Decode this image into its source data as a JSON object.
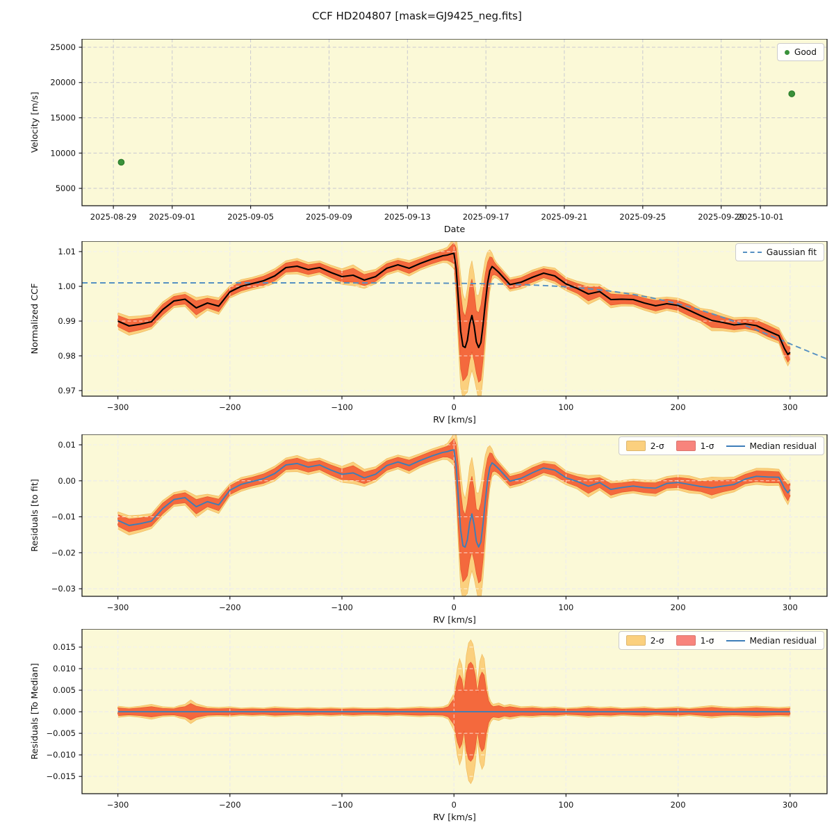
{
  "title": "CCF HD204807 [mask=GJ9425_neg.fits]",
  "figure": {
    "bg": "#ffffff",
    "plot_bg": "#fbf9d7",
    "grid_color": "#c8c8d0",
    "grid_overlay": "rgba(255,255,255,0.75)",
    "spine_color": "#1a1a1a",
    "sigma2_color": "#fbd07e",
    "sigma1_color": "#f4693d",
    "sigma2_edge": "#f0bd60",
    "sigma1_edge": "#e4562c",
    "legend_sigma2_color": "#fbd07e",
    "legend_sigma1_color": "#f8847c",
    "ccf_line_color": "#000000",
    "fit_line_color": "#5590c2",
    "median_line_color": "#3d7eb8",
    "point_color": "#3a923a",
    "point_edge_color": "#2c7e2c"
  },
  "chart_data": {
    "velocity": {
      "type": "scatter",
      "xlabel": "Date",
      "ylabel": "Velocity [m/s]",
      "ylim": [
        2540,
        26180
      ],
      "yticks": [
        {
          "v": 5000,
          "label": "5000"
        },
        {
          "v": 10000,
          "label": "10000"
        },
        {
          "v": 15000,
          "label": "15000"
        },
        {
          "v": 20000,
          "label": "20000"
        },
        {
          "v": 25000,
          "label": "25000"
        }
      ],
      "xlim_days": [
        -1.6,
        36.4
      ],
      "xticks": [
        {
          "day": 0,
          "label": "2025-08-29"
        },
        {
          "day": 3,
          "label": "2025-09-01"
        },
        {
          "day": 7,
          "label": "2025-09-05"
        },
        {
          "day": 11,
          "label": "2025-09-09"
        },
        {
          "day": 15,
          "label": "2025-09-13"
        },
        {
          "day": 19,
          "label": "2025-09-17"
        },
        {
          "day": 23,
          "label": "2025-09-21"
        },
        {
          "day": 27,
          "label": "2025-09-25"
        },
        {
          "day": 31,
          "label": "2025-09-29"
        },
        {
          "day": 33,
          "label": "2025-10-01"
        }
      ],
      "points": [
        {
          "date": "2025-08-29",
          "day": 0.4,
          "velocity": 8700
        },
        {
          "date": "2025-10-02",
          "day": 34.6,
          "velocity": 18400
        }
      ],
      "legend": [
        {
          "label": "Good",
          "marker": "dot"
        }
      ]
    },
    "ccf": {
      "type": "line",
      "xlabel": "RV [km/s]",
      "ylabel": "Normalized CCF",
      "xlim": [
        -332,
        333
      ],
      "xticks": [
        {
          "v": -300,
          "label": "−300"
        },
        {
          "v": -200,
          "label": "−200"
        },
        {
          "v": -100,
          "label": "−100"
        },
        {
          "v": 0,
          "label": "0"
        },
        {
          "v": 100,
          "label": "100"
        },
        {
          "v": 200,
          "label": "200"
        },
        {
          "v": 300,
          "label": "300"
        }
      ],
      "ylim": [
        0.9684,
        1.013
      ],
      "yticks": [
        {
          "v": 0.97,
          "label": "0.97"
        },
        {
          "v": 0.98,
          "label": "0.98"
        },
        {
          "v": 0.99,
          "label": "0.99"
        },
        {
          "v": 1.0,
          "label": "1.00"
        },
        {
          "v": 1.01,
          "label": "1.01"
        }
      ],
      "x": [
        -300,
        -290,
        -280,
        -270,
        -260,
        -250,
        -240,
        -230,
        -220,
        -210,
        -200,
        -190,
        -180,
        -170,
        -160,
        -150,
        -140,
        -130,
        -120,
        -110,
        -100,
        -90,
        -80,
        -70,
        -60,
        -50,
        -40,
        -30,
        -20,
        -10,
        -6,
        -3,
        0,
        2,
        4,
        6,
        8,
        10,
        12,
        14,
        16,
        18,
        20,
        22,
        24,
        26,
        28,
        30,
        32,
        34,
        36,
        38,
        40,
        50,
        60,
        70,
        80,
        90,
        100,
        110,
        120,
        130,
        140,
        150,
        160,
        170,
        180,
        190,
        200,
        210,
        220,
        230,
        240,
        250,
        260,
        270,
        280,
        290,
        295,
        298,
        300
      ],
      "median": [
        0.99,
        0.9886,
        0.9891,
        0.9898,
        0.9933,
        0.9958,
        0.9963,
        0.9938,
        0.9952,
        0.9943,
        0.9984,
        1.0,
        1.0008,
        1.0016,
        1.003,
        1.0054,
        1.0058,
        1.0048,
        1.0054,
        1.004,
        1.0028,
        1.0032,
        1.0018,
        1.0028,
        1.0052,
        1.0062,
        1.0052,
        1.0066,
        1.0078,
        1.0088,
        1.009,
        1.0093,
        1.0095,
        1.005,
        0.996,
        0.987,
        0.9828,
        0.9824,
        0.9845,
        0.9892,
        0.9916,
        0.9886,
        0.984,
        0.9824,
        0.9838,
        0.989,
        0.9952,
        1.001,
        1.0045,
        1.0057,
        1.0052,
        1.0046,
        1.004,
        1.0005,
        1.0012,
        1.0026,
        1.0038,
        1.003,
        1.0007,
        0.9994,
        0.9978,
        0.9985,
        0.9962,
        0.9963,
        0.9962,
        0.9952,
        0.9944,
        0.995,
        0.9945,
        0.9931,
        0.9916,
        0.9902,
        0.9896,
        0.9889,
        0.9892,
        0.9887,
        0.9872,
        0.9858,
        0.9821,
        0.9804,
        0.981
      ],
      "sigma1": [
        0.0016,
        0.0018,
        0.0016,
        0.0014,
        0.0015,
        0.0013,
        0.0014,
        0.002,
        0.0014,
        0.0016,
        0.0012,
        0.0013,
        0.0012,
        0.0013,
        0.0014,
        0.0013,
        0.0015,
        0.0014,
        0.0013,
        0.0014,
        0.0015,
        0.002,
        0.0016,
        0.0014,
        0.0013,
        0.0013,
        0.0015,
        0.0013,
        0.0013,
        0.0013,
        0.0015,
        0.0022,
        0.003,
        0.006,
        0.009,
        0.0108,
        0.01,
        0.009,
        0.01,
        0.0105,
        0.0105,
        0.01,
        0.009,
        0.01,
        0.0108,
        0.01,
        0.0085,
        0.006,
        0.004,
        0.0026,
        0.0018,
        0.0015,
        0.0014,
        0.0013,
        0.0013,
        0.0014,
        0.0013,
        0.0015,
        0.0013,
        0.0014,
        0.002,
        0.0014,
        0.0016,
        0.0013,
        0.0013,
        0.0014,
        0.0015,
        0.0013,
        0.0014,
        0.0016,
        0.0014,
        0.002,
        0.0016,
        0.0014,
        0.0013,
        0.0015,
        0.0016,
        0.0015,
        0.002,
        0.0022,
        0.0018
      ],
      "sigma2_scale": 1.5,
      "gaussian_fit": {
        "continuum": 1.001,
        "depth": 0.0289,
        "center": 430,
        "sigma": 130
      },
      "legend": [
        {
          "label": "Gaussian fit",
          "marker": "dashed-line"
        }
      ]
    },
    "residuals_to_fit": {
      "type": "line",
      "xlabel": "RV [km/s]",
      "ylabel": "Residuals [to fit]",
      "ylim": [
        -0.0321,
        0.0129
      ],
      "yticks": [
        {
          "v": 0.01,
          "label": "0.01"
        },
        {
          "v": 0.0,
          "label": "0.00"
        },
        {
          "v": -0.01,
          "label": "−0.01"
        },
        {
          "v": -0.02,
          "label": "−0.02"
        },
        {
          "v": -0.03,
          "label": "−0.03"
        }
      ],
      "derived": "ccf.median minus gaussian_fit",
      "sigma_from": "ccf",
      "legend": [
        {
          "label": "2-σ",
          "marker": "patch2"
        },
        {
          "label": "1-σ",
          "marker": "patch1"
        },
        {
          "label": "Median residual",
          "marker": "line"
        }
      ]
    },
    "residuals_to_median": {
      "type": "line",
      "xlabel": "RV [km/s]",
      "ylabel": "Residuals [To Median]",
      "ylim": [
        -0.019,
        0.0192
      ],
      "yticks": [
        {
          "v": 0.015,
          "label": "0.015"
        },
        {
          "v": 0.01,
          "label": "0.010"
        },
        {
          "v": 0.005,
          "label": "0.005"
        },
        {
          "v": 0.0,
          "label": "0.000"
        },
        {
          "v": -0.005,
          "label": "−0.005"
        },
        {
          "v": -0.01,
          "label": "−0.010"
        },
        {
          "v": -0.015,
          "label": "−0.015"
        }
      ],
      "x": [
        -300,
        -290,
        -280,
        -270,
        -260,
        -250,
        -245,
        -240,
        -235,
        -230,
        -220,
        -210,
        -200,
        -190,
        -180,
        -170,
        -160,
        -150,
        -140,
        -130,
        -120,
        -110,
        -100,
        -90,
        -80,
        -70,
        -60,
        -50,
        -40,
        -30,
        -20,
        -10,
        -5,
        0,
        3,
        5,
        7,
        9,
        11,
        13,
        15,
        17,
        19,
        21,
        23,
        25,
        27,
        29,
        31,
        33,
        35,
        40,
        45,
        50,
        60,
        70,
        80,
        90,
        100,
        110,
        120,
        130,
        140,
        150,
        160,
        170,
        180,
        190,
        200,
        210,
        220,
        230,
        240,
        250,
        260,
        270,
        280,
        290,
        300
      ],
      "median_constant": 0.0,
      "sigma1": [
        0.0009,
        0.0007,
        0.0009,
        0.0012,
        0.0008,
        0.0007,
        0.001,
        0.0012,
        0.0019,
        0.0013,
        0.0008,
        0.0007,
        0.0008,
        0.0006,
        0.0007,
        0.0006,
        0.0008,
        0.0007,
        0.0006,
        0.0007,
        0.0006,
        0.0007,
        0.0006,
        0.0007,
        0.0006,
        0.0006,
        0.0007,
        0.0006,
        0.0007,
        0.0008,
        0.0007,
        0.0008,
        0.0012,
        0.003,
        0.007,
        0.0085,
        0.0075,
        0.0045,
        0.009,
        0.011,
        0.0115,
        0.0108,
        0.0085,
        0.0045,
        0.008,
        0.0092,
        0.0085,
        0.005,
        0.0025,
        0.0016,
        0.0012,
        0.0014,
        0.001,
        0.0012,
        0.0008,
        0.0009,
        0.0007,
        0.0008,
        0.0006,
        0.0007,
        0.0009,
        0.0007,
        0.0008,
        0.0006,
        0.0007,
        0.0008,
        0.0006,
        0.0007,
        0.0008,
        0.0006,
        0.0008,
        0.001,
        0.0008,
        0.0007,
        0.0008,
        0.0009,
        0.0008,
        0.0007,
        0.0008
      ],
      "sigma2_scale": 1.45,
      "legend": [
        {
          "label": "2-σ",
          "marker": "patch2"
        },
        {
          "label": "1-σ",
          "marker": "patch1"
        },
        {
          "label": "Median residual",
          "marker": "line"
        }
      ]
    }
  }
}
